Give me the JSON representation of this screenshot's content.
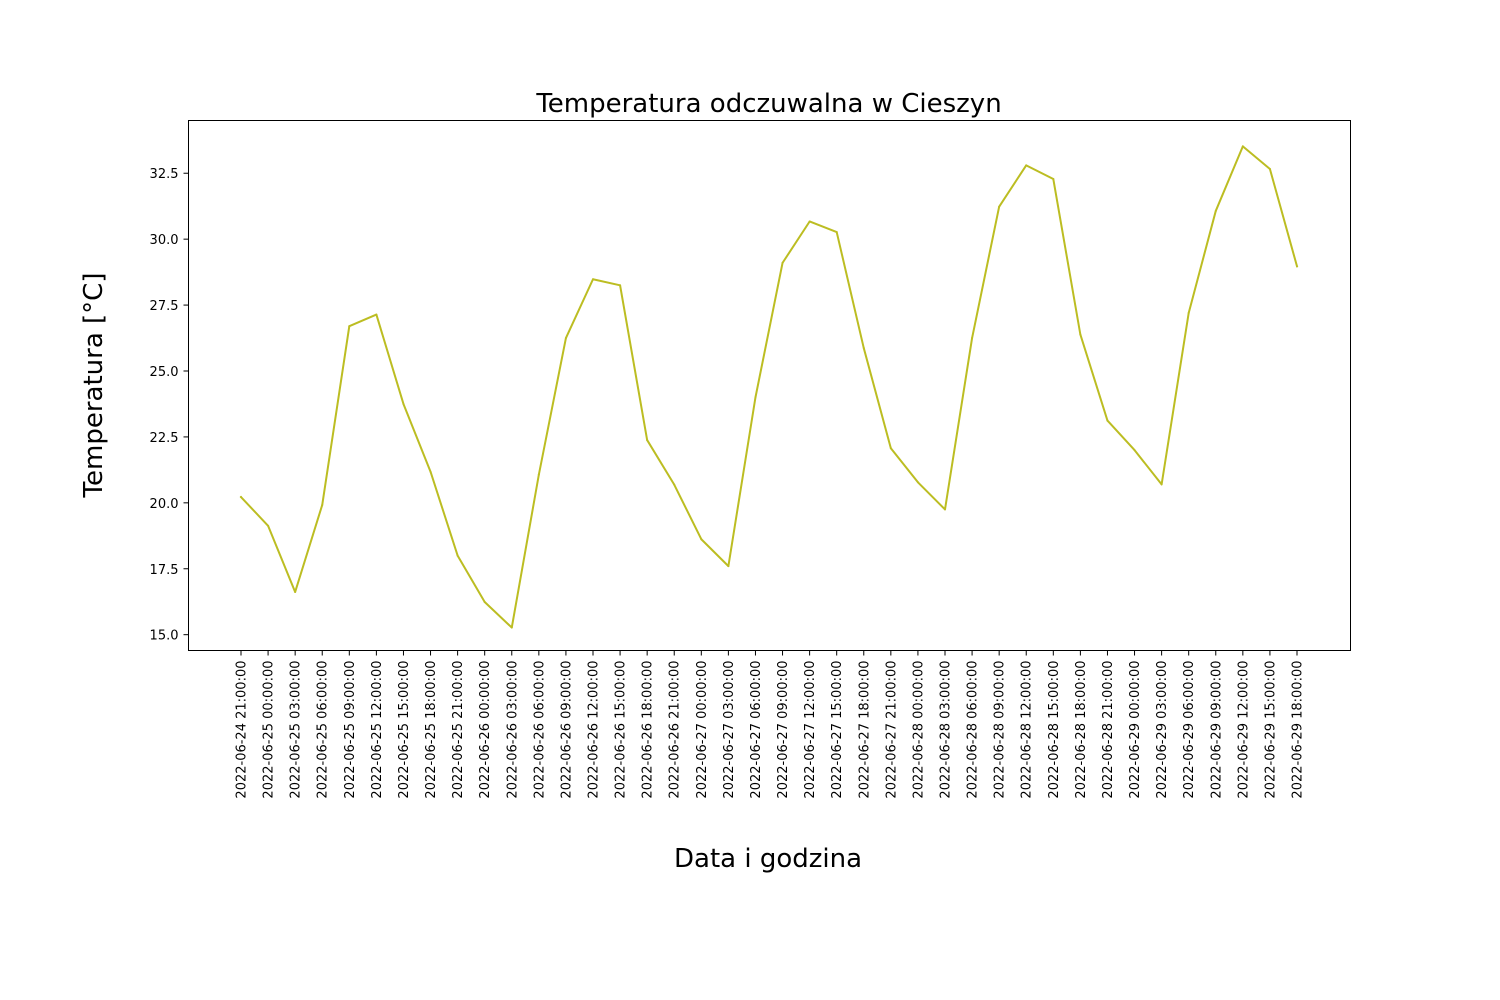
{
  "chart_data": {
    "type": "line",
    "title": "Temperatura odczuwalna w Cieszyn",
    "xlabel": "Data i godzina",
    "ylabel": "Temperatura [°C]",
    "ylim": [
      14.4,
      34.5
    ],
    "yticks": [
      "15.0",
      "17.5",
      "20.0",
      "22.5",
      "25.0",
      "27.5",
      "30.0",
      "32.5"
    ],
    "grid": false,
    "line_color": "#bcbd22",
    "categories": [
      "2022-06-24 21:00:00",
      "2022-06-25 00:00:00",
      "2022-06-25 03:00:00",
      "2022-06-25 06:00:00",
      "2022-06-25 09:00:00",
      "2022-06-25 12:00:00",
      "2022-06-25 15:00:00",
      "2022-06-25 18:00:00",
      "2022-06-25 21:00:00",
      "2022-06-26 00:00:00",
      "2022-06-26 03:00:00",
      "2022-06-26 06:00:00",
      "2022-06-26 09:00:00",
      "2022-06-26 12:00:00",
      "2022-06-26 15:00:00",
      "2022-06-26 18:00:00",
      "2022-06-26 21:00:00",
      "2022-06-27 00:00:00",
      "2022-06-27 03:00:00",
      "2022-06-27 06:00:00",
      "2022-06-27 09:00:00",
      "2022-06-27 12:00:00",
      "2022-06-27 15:00:00",
      "2022-06-27 18:00:00",
      "2022-06-27 21:00:00",
      "2022-06-28 00:00:00",
      "2022-06-28 03:00:00",
      "2022-06-28 06:00:00",
      "2022-06-28 09:00:00",
      "2022-06-28 12:00:00",
      "2022-06-28 15:00:00",
      "2022-06-28 18:00:00",
      "2022-06-28 21:00:00",
      "2022-06-29 00:00:00",
      "2022-06-29 03:00:00",
      "2022-06-29 06:00:00",
      "2022-06-29 09:00:00",
      "2022-06-29 12:00:00",
      "2022-06-29 15:00:00",
      "2022-06-29 18:00:00"
    ],
    "values": [
      20.22,
      19.13,
      16.62,
      19.92,
      26.7,
      27.14,
      23.75,
      21.18,
      18.0,
      16.24,
      15.27,
      21.07,
      26.25,
      28.48,
      28.25,
      22.38,
      20.69,
      18.62,
      17.6,
      24.0,
      29.1,
      30.67,
      30.27,
      25.87,
      22.07,
      20.78,
      19.75,
      26.25,
      31.23,
      32.8,
      32.28,
      26.38,
      23.12,
      22.0,
      20.7,
      27.2,
      31.07,
      33.52,
      32.66,
      28.97
    ]
  }
}
